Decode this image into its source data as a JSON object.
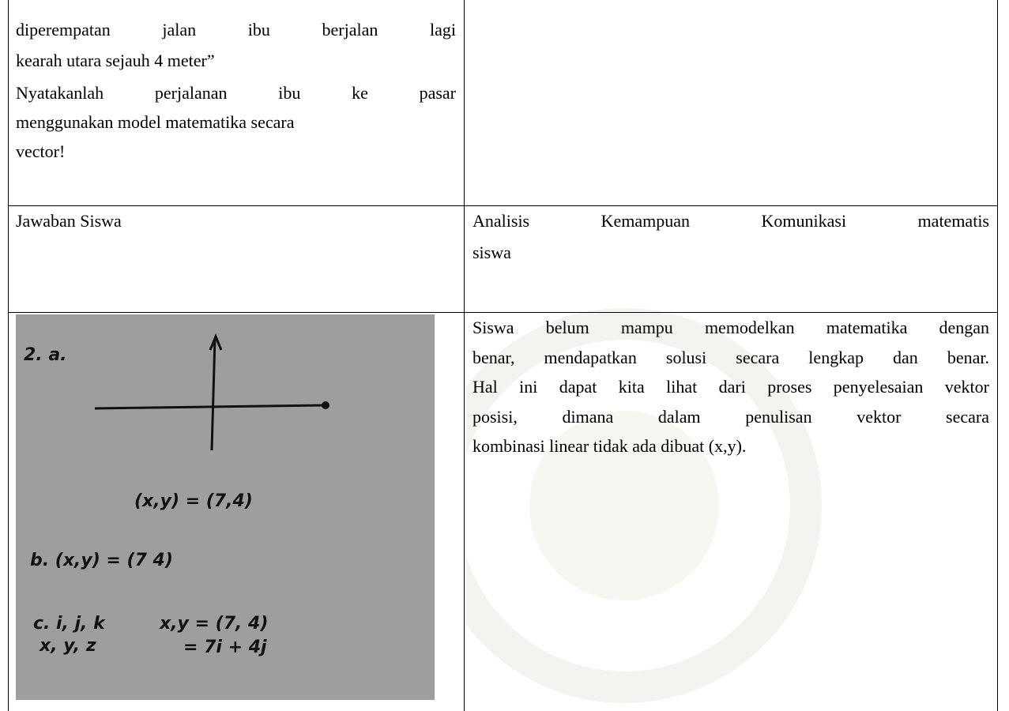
{
  "table": {
    "rows": [
      [
        [
          "diperempatan jalan ibu berjalan lagi",
          "kearah utara sejauh 4 meter”",
          "Nyatakanlah perjalanan ibu ke pasar",
          "menggunakan model matematika secara",
          "vector!"
        ],
        []
      ],
      [
        [
          "Jawaban Siswa"
        ],
        [
          "Analisis Kemampuan Komunikasi matematis",
          "siswa"
        ]
      ],
      [
        [],
        [
          "Siswa belum mampu memodelkan matematika dengan",
          "benar, mendapatkan solusi secara lengkap dan benar.",
          "Hal ini dapat kita lihat dari proses penyelesaian vektor",
          "posisi, dimana dalam penulisan vektor secara",
          "kombinasi linear tidak ada dibuat (x,y)."
        ]
      ]
    ]
  },
  "student_answer": {
    "lines": [
      "2. a.",
      "(x,y) = (7,4)",
      "b. (x,y) = (7 4)",
      "c. i, j, k",
      "x,y = (7, 4)",
      "x, y, z",
      "= 7i + 4j"
    ]
  }
}
